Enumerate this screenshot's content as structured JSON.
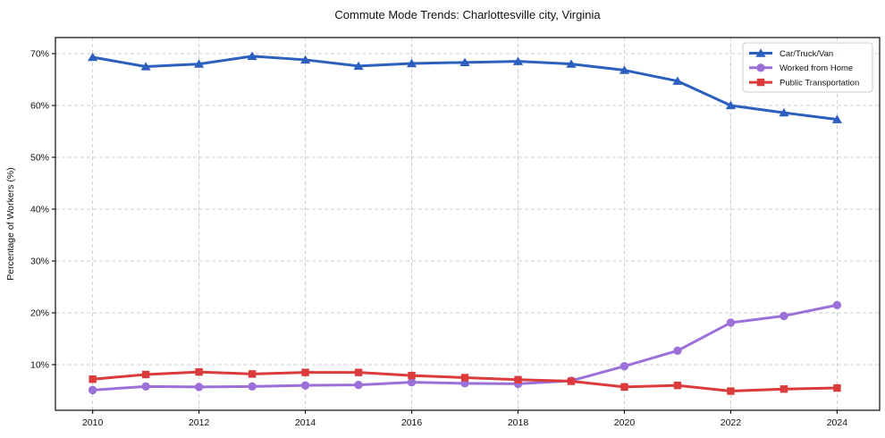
{
  "title": "Commute Mode Trends: Charlottesville city, Virginia",
  "chart_data": {
    "type": "line",
    "title": "Commute Mode Trends: Charlottesville city, Virginia",
    "xlabel": "",
    "ylabel": "Percentage of Workers (%)",
    "x": [
      2010,
      2011,
      2012,
      2013,
      2014,
      2015,
      2016,
      2017,
      2018,
      2019,
      2020,
      2021,
      2022,
      2023,
      2024
    ],
    "series": [
      {
        "name": "Car/Truck/Van",
        "marker": "triangle",
        "color": "#2c5fbe",
        "values": [
          69.3,
          67.5,
          68.0,
          69.5,
          68.8,
          67.6,
          68.1,
          68.3,
          68.5,
          68.0,
          66.8,
          64.7,
          60.0,
          58.6,
          57.3
        ]
      },
      {
        "name": "Worked from Home",
        "marker": "circle",
        "color": "#9b70d8",
        "values": [
          5.1,
          5.8,
          5.7,
          5.8,
          6.0,
          6.1,
          6.6,
          6.4,
          6.3,
          6.9,
          9.7,
          12.7,
          18.1,
          19.4,
          21.5
        ]
      },
      {
        "name": "Public Transportation",
        "marker": "square",
        "color": "#db3b3b",
        "values": [
          7.2,
          8.1,
          8.6,
          8.2,
          8.5,
          8.5,
          7.9,
          7.5,
          7.1,
          6.8,
          5.7,
          6.0,
          4.9,
          5.3,
          5.5
        ]
      }
    ],
    "xticks": [
      2010,
      2012,
      2014,
      2016,
      2018,
      2020,
      2022,
      2024
    ],
    "yticks": [
      10,
      20,
      30,
      40,
      50,
      60,
      70
    ],
    "ytick_suffix": "%",
    "xlim": [
      2009.3,
      2024.8
    ],
    "ylim": [
      1.2,
      73.1
    ],
    "grid": true,
    "grid_style": "dashed",
    "legend_position": "upper right",
    "colors": {
      "grid": "#cccccc",
      "spine": "#1a1a1a",
      "tick_text": "#111111",
      "legend_border": "#cccccc",
      "legend_bg": "#ffffff",
      "background": "#ffffff"
    }
  }
}
